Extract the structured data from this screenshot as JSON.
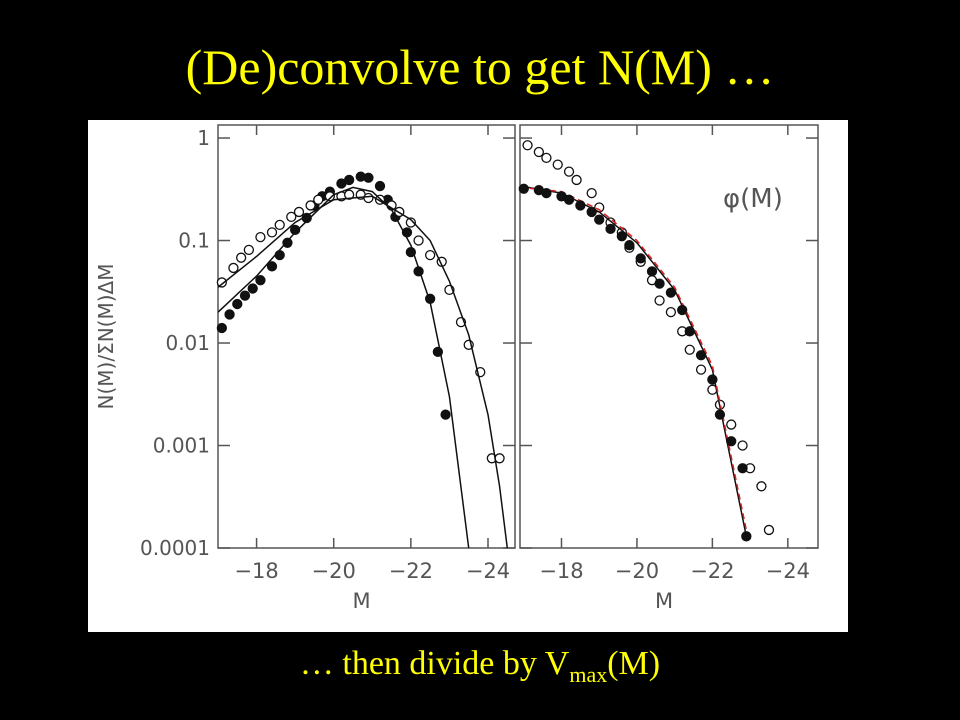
{
  "title": "(De)convolve to get N(M) …",
  "caption": {
    "before": "… then divide by V",
    "sub": "max",
    "after": "(M)"
  },
  "chart_data": [
    {
      "type": "scatter",
      "xlabel": "M",
      "ylabel": "N(M)/ΣN(M)ΔM",
      "log_y": true,
      "xlim": [
        -17,
        -24.7
      ],
      "ylim": [
        0.0001,
        1.34
      ],
      "xticks": [
        {
          "value": -18,
          "label": "−18"
        },
        {
          "value": -20,
          "label": "−20"
        },
        {
          "value": -22,
          "label": "−22"
        },
        {
          "value": -24,
          "label": "−24"
        }
      ],
      "yticks": [
        1,
        0.1,
        0.01,
        0.001,
        0.0001
      ],
      "ytick_labels": true,
      "series": [
        {
          "marker": "filled",
          "color": "#111111",
          "x": [
            -17.1,
            -17.3,
            -17.5,
            -17.7,
            -17.9,
            -18.1,
            -18.4,
            -18.6,
            -18.8,
            -19.0,
            -19.3,
            -19.5,
            -19.7,
            -19.9,
            -20.2,
            -20.4,
            -20.7,
            -20.9,
            -21.2,
            -21.4,
            -21.6,
            -21.9,
            -22.0,
            -22.2,
            -22.5,
            -22.7,
            -22.9
          ],
          "values": [
            0.014,
            0.019,
            0.024,
            0.029,
            0.034,
            0.041,
            0.056,
            0.072,
            0.095,
            0.127,
            0.166,
            0.22,
            0.27,
            0.3,
            0.36,
            0.39,
            0.42,
            0.41,
            0.34,
            0.25,
            0.17,
            0.12,
            0.077,
            0.05,
            0.027,
            0.0082,
            0.002
          ]
        },
        {
          "marker": "open",
          "color": "#111111",
          "x": [
            -17.1,
            -17.4,
            -17.6,
            -17.8,
            -18.1,
            -18.4,
            -18.6,
            -18.9,
            -19.1,
            -19.4,
            -19.6,
            -19.9,
            -20.2,
            -20.4,
            -20.7,
            -20.9,
            -21.2,
            -21.5,
            -21.7,
            -22.0,
            -22.2,
            -22.5,
            -22.8,
            -23.0,
            -23.3,
            -23.5,
            -23.8,
            -24.1,
            -24.3
          ],
          "values": [
            0.039,
            0.054,
            0.068,
            0.081,
            0.108,
            0.12,
            0.142,
            0.17,
            0.19,
            0.22,
            0.25,
            0.27,
            0.27,
            0.28,
            0.28,
            0.26,
            0.25,
            0.22,
            0.19,
            0.15,
            0.1,
            0.072,
            0.062,
            0.033,
            0.016,
            0.0096,
            0.0052,
            0.00075,
            0.00075
          ]
        },
        {
          "marker": "line",
          "color": "#111111",
          "x": [
            -17,
            -18,
            -19,
            -20,
            -20.5,
            -21,
            -21.5,
            -22,
            -22.5,
            -23,
            -23.5
          ],
          "values": [
            0.02,
            0.045,
            0.12,
            0.28,
            0.33,
            0.3,
            0.2,
            0.09,
            0.025,
            0.003,
            0.0001
          ]
        },
        {
          "marker": "line",
          "color": "#111111",
          "x": [
            -17,
            -18,
            -19,
            -20,
            -21,
            -22,
            -22.5,
            -23,
            -23.5,
            -24,
            -24.3,
            -24.5
          ],
          "values": [
            0.035,
            0.07,
            0.15,
            0.25,
            0.27,
            0.16,
            0.1,
            0.04,
            0.012,
            0.002,
            0.0004,
            0.0001
          ]
        }
      ]
    },
    {
      "type": "scatter",
      "xlabel": "M",
      "annotation": "φ(M)",
      "log_y": true,
      "xlim": [
        -16.9,
        -24.8
      ],
      "ylim": [
        0.0001,
        1.34
      ],
      "xticks": [
        {
          "value": -18,
          "label": "−18"
        },
        {
          "value": -20,
          "label": "−20"
        },
        {
          "value": -22,
          "label": "−22"
        },
        {
          "value": -24,
          "label": "−24"
        }
      ],
      "yticks": [
        1,
        0.1,
        0.01,
        0.001,
        0.0001
      ],
      "ytick_labels": false,
      "series": [
        {
          "marker": "open",
          "color": "#111111",
          "x": [
            -17.1,
            -17.4,
            -17.6,
            -17.9,
            -18.2,
            -18.4,
            -18.8,
            -19.0,
            -19.3,
            -19.6,
            -19.8,
            -20.1,
            -20.4,
            -20.6,
            -20.9,
            -21.2,
            -21.4,
            -21.7,
            -22.0,
            -22.2,
            -22.5,
            -22.8,
            -23.0,
            -23.3,
            -23.5
          ],
          "values": [
            0.85,
            0.73,
            0.64,
            0.55,
            0.47,
            0.39,
            0.29,
            0.21,
            0.15,
            0.12,
            0.085,
            0.062,
            0.041,
            0.026,
            0.02,
            0.013,
            0.0086,
            0.0055,
            0.0035,
            0.0025,
            0.0016,
            0.001,
            0.0006,
            0.0004,
            0.00015
          ]
        },
        {
          "marker": "line",
          "color": "#111111",
          "x": [
            -16.9,
            -18,
            -19,
            -20,
            -21,
            -22,
            -22.9
          ],
          "values": [
            0.34,
            0.29,
            0.19,
            0.095,
            0.033,
            0.0055,
            0.00013
          ]
        },
        {
          "marker": "dashed",
          "color": "#e02020",
          "x": [
            -16.9,
            -18,
            -19,
            -20,
            -21,
            -22,
            -22.9
          ],
          "values": [
            0.33,
            0.3,
            0.2,
            0.1,
            0.035,
            0.006,
            0.00015
          ]
        },
        {
          "marker": "filled",
          "color": "#111111",
          "x": [
            -17.0,
            -17.4,
            -17.6,
            -18.0,
            -18.2,
            -18.5,
            -18.8,
            -19.0,
            -19.3,
            -19.6,
            -19.8,
            -20.1,
            -20.4,
            -20.6,
            -20.9,
            -21.2,
            -21.4,
            -21.7,
            -22.0,
            -22.2,
            -22.5,
            -22.8,
            -22.9
          ],
          "values": [
            0.32,
            0.31,
            0.29,
            0.27,
            0.25,
            0.22,
            0.19,
            0.16,
            0.13,
            0.11,
            0.09,
            0.067,
            0.05,
            0.038,
            0.031,
            0.021,
            0.013,
            0.0076,
            0.0044,
            0.002,
            0.0011,
            0.0006,
            0.00013
          ]
        }
      ]
    }
  ]
}
